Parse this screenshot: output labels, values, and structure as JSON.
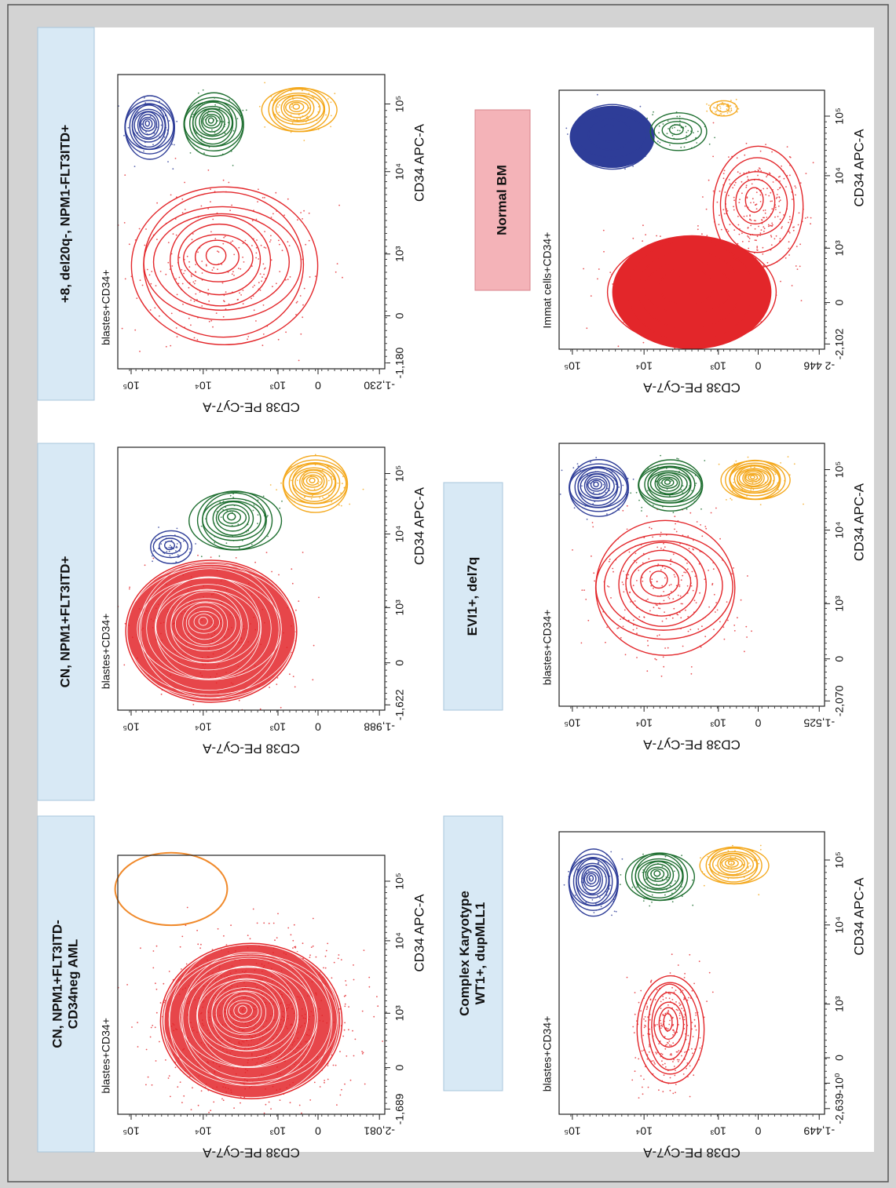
{
  "panels": [
    {
      "title_lines": [
        "CN, NPM1+FLT3ITD-",
        "CD34neg AML"
      ],
      "gate_label": "blastes+CD34+",
      "x_label": "CD34 APC-A",
      "y_label": "CD38 PE-Cy7-A",
      "x_ticks": [
        "-1,689",
        "0",
        "10³",
        "10⁴",
        "10⁵"
      ],
      "y_ticks": [
        "-2,081",
        "0",
        "10³",
        "10⁴",
        "10⁵"
      ]
    },
    {
      "title_lines": [
        "CN, NPM1+FLT3ITD+"
      ],
      "gate_label": "blastes+CD34+",
      "x_label": "CD34 APC-A",
      "y_label": "CD38 PE-Cy7-A",
      "x_ticks": [
        "-1,622",
        "0",
        "10³",
        "10⁴",
        "10⁵"
      ],
      "y_ticks": [
        "-1,988",
        "0",
        "10³",
        "10⁴",
        "10⁵"
      ]
    },
    {
      "title_lines": [
        "+8, del20q-, NPM1-FLT3ITD+"
      ],
      "gate_label": "blastes+CD34+",
      "x_label": "CD34 APC-A",
      "y_label": "CD38 PE-Cy7-A",
      "x_ticks": [
        "-1,180",
        "0",
        "10³",
        "10⁴",
        "10⁵"
      ],
      "y_ticks": [
        "-1,230",
        "0",
        "10³",
        "10⁴",
        "10⁵"
      ]
    },
    {
      "title_lines": [
        "Complex Karyotype",
        "WT1+, dupMLL1"
      ],
      "gate_label": "blastes+CD34+",
      "x_label": "CD34 APC-A",
      "y_label": "CD38 PE-Cy7-A",
      "x_ticks": [
        "-2,639",
        "-10⁰",
        "0",
        "10³",
        "10⁴",
        "10⁵"
      ],
      "y_ticks": [
        "-1,449",
        "0",
        "10³",
        "10⁴",
        "10⁵"
      ]
    },
    {
      "title_lines": [
        "EVI1+, del7q"
      ],
      "gate_label": "blastes+CD34+",
      "x_label": "CD34 APC-A",
      "y_label": "CD38 PE-Cy7-A",
      "x_ticks": [
        "-2,070",
        "0",
        "10³",
        "10⁴",
        "10⁵"
      ],
      "y_ticks": [
        "-1,525",
        "0",
        "10³",
        "10⁴",
        "10⁵"
      ]
    },
    {
      "title_lines": [
        "Normal BM"
      ],
      "gate_label": "Immat cells+CD34+",
      "x_label": "CD34 APC-A",
      "y_label": "CD38 PE-Cy7-A",
      "x_ticks": [
        "-2,102",
        "0",
        "10³",
        "10⁴",
        "10⁵"
      ],
      "y_ticks": [
        "-2 446",
        "0",
        "10³",
        "10⁴",
        "10⁵"
      ]
    }
  ]
}
